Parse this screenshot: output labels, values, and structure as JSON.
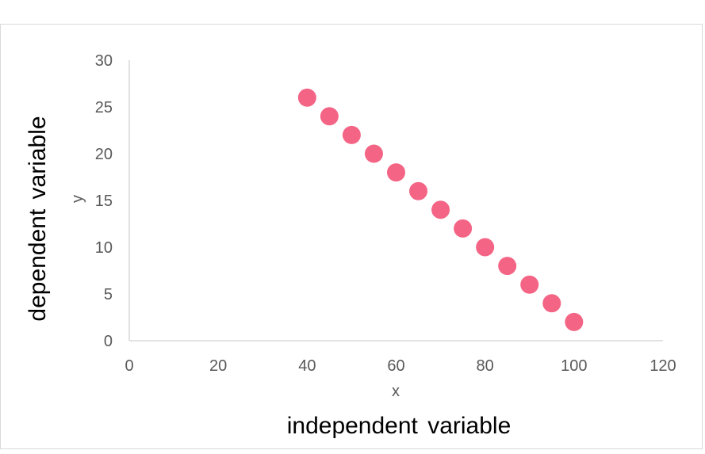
{
  "chart_data": {
    "type": "scatter",
    "title": "",
    "xlabel": "x",
    "ylabel": "y",
    "outer_xlabel": "independent variable",
    "outer_ylabel": "dependent variable",
    "xlim": [
      0,
      120
    ],
    "ylim": [
      0,
      30
    ],
    "x_ticks": [
      "0",
      "20",
      "40",
      "60",
      "80",
      "100",
      "120"
    ],
    "y_ticks": [
      "0",
      "5",
      "10",
      "15",
      "20",
      "25",
      "30"
    ],
    "grid": false,
    "legend": "none",
    "marker_color": "#f46485",
    "points": [
      {
        "x": 40,
        "y": 26
      },
      {
        "x": 45,
        "y": 24
      },
      {
        "x": 50,
        "y": 22
      },
      {
        "x": 55,
        "y": 20
      },
      {
        "x": 60,
        "y": 18
      },
      {
        "x": 65,
        "y": 16
      },
      {
        "x": 70,
        "y": 14
      },
      {
        "x": 75,
        "y": 12
      },
      {
        "x": 80,
        "y": 10
      },
      {
        "x": 85,
        "y": 8
      },
      {
        "x": 90,
        "y": 6
      },
      {
        "x": 95,
        "y": 4
      },
      {
        "x": 100,
        "y": 2
      }
    ]
  }
}
